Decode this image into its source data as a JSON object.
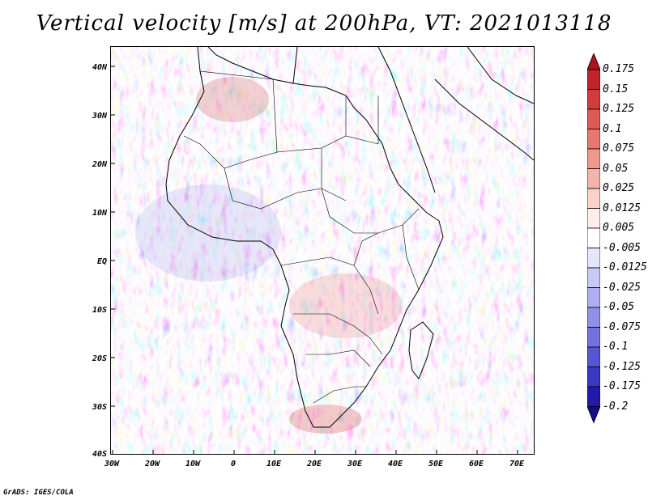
{
  "title": "Vertical velocity [m/s] at 200hPa, VT: 2021013118",
  "footer": "GrADS: IGES/COLA",
  "map": {
    "region": "Africa",
    "lat_labels": [
      "40N",
      "30N",
      "20N",
      "10N",
      "EQ",
      "10S",
      "20S",
      "30S",
      "40S"
    ],
    "lon_labels": [
      "30W",
      "20W",
      "10W",
      "0",
      "10E",
      "20E",
      "30E",
      "40E",
      "50E",
      "60E",
      "70E"
    ],
    "lat_range": [
      -40,
      45
    ],
    "lon_range": [
      -30,
      75
    ]
  },
  "colorbar": {
    "labels": [
      "0.175",
      "0.15",
      "0.125",
      "0.1",
      "0.075",
      "0.05",
      "0.025",
      "0.0125",
      "0.005",
      "-0.005",
      "-0.0125",
      "-0.025",
      "-0.05",
      "-0.075",
      "-0.1",
      "-0.125",
      "-0.175",
      "-0.2"
    ],
    "colors": [
      "#a8151c",
      "#c0242a",
      "#d23d3c",
      "#de5a55",
      "#e8786f",
      "#ee988e",
      "#f3b5ab",
      "#f8d2ca",
      "#fdeeea",
      "#ffffff",
      "#e6e6fb",
      "#c9c9f6",
      "#aeaef1",
      "#9090ea",
      "#7272e1",
      "#5555d5",
      "#3a38c4",
      "#2419ad",
      "#170b8e"
    ]
  }
}
